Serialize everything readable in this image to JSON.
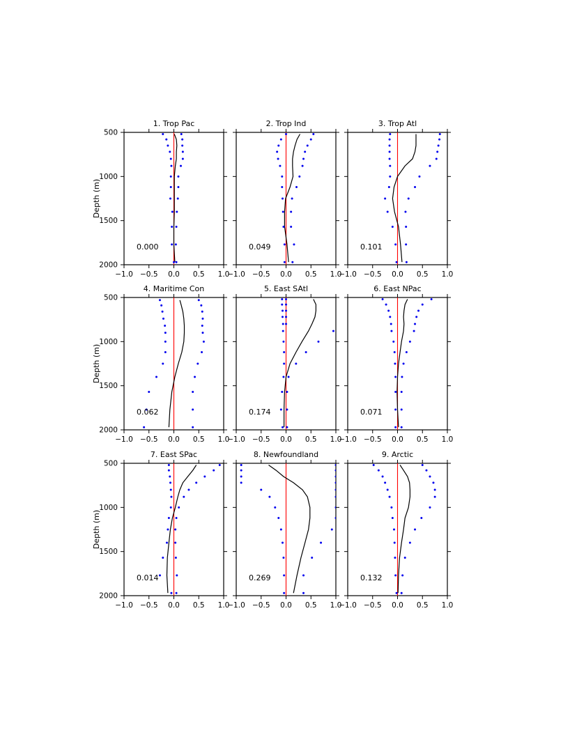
{
  "chart_data": {
    "type": "line",
    "xlim": [
      -1.0,
      1.0
    ],
    "ylim": [
      2000,
      500
    ],
    "y_inverted": true,
    "xticks": [
      "−1.0",
      "−0.5",
      "0.0",
      "0.5",
      "1.0"
    ],
    "yticks": [
      "500",
      "1000",
      "1500",
      "2000"
    ],
    "ylabel": "Depth (m)",
    "colors": {
      "profile": "#000000",
      "spread": "#0000ee",
      "zero_line": "#ff0000"
    },
    "panels": [
      {
        "title": "1. Trop Pac",
        "value_label": "0.000",
        "depths": [
          520,
          580,
          650,
          720,
          800,
          880,
          1000,
          1120,
          1250,
          1400,
          1570,
          1770,
          1970
        ],
        "profile": [
          0.01,
          0.05,
          0.06,
          0.05,
          0.05,
          0.03,
          0.01,
          0.01,
          0.01,
          0.01,
          0.0,
          0.0,
          0.02
        ],
        "lower": [
          -0.22,
          -0.15,
          -0.12,
          -0.08,
          -0.06,
          -0.05,
          -0.06,
          -0.06,
          -0.07,
          -0.03,
          -0.04,
          -0.04,
          0.0
        ],
        "upper": [
          0.15,
          0.17,
          0.17,
          0.18,
          0.18,
          0.14,
          0.09,
          0.09,
          0.08,
          0.06,
          0.05,
          0.04,
          0.05
        ],
        "grid": false
      },
      {
        "title": "2. Trop Ind",
        "value_label": "0.049",
        "depths": [
          520,
          580,
          650,
          720,
          800,
          880,
          1000,
          1120,
          1250,
          1400,
          1570,
          1770,
          1970
        ],
        "profile": [
          0.28,
          0.22,
          0.18,
          0.15,
          0.13,
          0.13,
          0.14,
          0.08,
          -0.01,
          -0.03,
          -0.03,
          0.02,
          0.05
        ],
        "lower": [
          0.0,
          -0.1,
          -0.15,
          -0.18,
          -0.16,
          -0.12,
          -0.08,
          -0.08,
          -0.07,
          -0.06,
          -0.05,
          -0.03,
          -0.03
        ],
        "upper": [
          0.55,
          0.5,
          0.43,
          0.38,
          0.35,
          0.33,
          0.27,
          0.21,
          0.12,
          0.1,
          0.1,
          0.16,
          0.13
        ],
        "grid": false
      },
      {
        "title": "3. Trop Atl",
        "value_label": "0.101",
        "depths": [
          520,
          580,
          650,
          720,
          800,
          880,
          1000,
          1120,
          1250,
          1400,
          1570,
          1770,
          1970
        ],
        "profile": [
          0.37,
          0.37,
          0.37,
          0.35,
          0.3,
          0.15,
          0.0,
          -0.07,
          -0.1,
          -0.06,
          0.02,
          0.06,
          0.09
        ],
        "lower": [
          -0.15,
          -0.16,
          -0.16,
          -0.16,
          -0.16,
          -0.15,
          -0.15,
          -0.17,
          -0.25,
          -0.2,
          -0.1,
          -0.04,
          -0.02
        ],
        "upper": [
          0.85,
          0.84,
          0.82,
          0.8,
          0.78,
          0.65,
          0.44,
          0.35,
          0.22,
          0.16,
          0.17,
          0.17,
          0.18
        ],
        "grid": false
      },
      {
        "title": "4. Maritime Con",
        "value_label": "0.062",
        "depths": [
          530,
          590,
          660,
          740,
          820,
          900,
          1000,
          1120,
          1250,
          1400,
          1570,
          1770,
          1970
        ],
        "profile": [
          0.12,
          0.15,
          0.18,
          0.2,
          0.21,
          0.21,
          0.2,
          0.16,
          0.09,
          0.02,
          -0.04,
          -0.08,
          -0.1
        ],
        "lower": [
          -0.28,
          -0.25,
          -0.23,
          -0.21,
          -0.18,
          -0.17,
          -0.17,
          -0.17,
          -0.22,
          -0.35,
          -0.5,
          -0.55,
          -0.6
        ],
        "upper": [
          0.5,
          0.55,
          0.57,
          0.58,
          0.57,
          0.58,
          0.6,
          0.56,
          0.48,
          0.42,
          0.38,
          0.38,
          0.38
        ],
        "grid": false
      },
      {
        "title": "5. East SAtl",
        "value_label": "0.174",
        "depths": [
          520,
          580,
          650,
          720,
          800,
          880,
          1000,
          1120,
          1250,
          1400,
          1570,
          1770,
          1970
        ],
        "profile": [
          0.55,
          0.6,
          0.6,
          0.58,
          0.52,
          0.45,
          0.32,
          0.2,
          0.08,
          0.0,
          -0.03,
          -0.04,
          -0.04
        ],
        "lower": [
          -0.08,
          -0.08,
          -0.07,
          -0.07,
          -0.06,
          -0.06,
          -0.05,
          -0.04,
          -0.04,
          -0.05,
          -0.08,
          -0.1,
          -0.07
        ],
        "upper": [
          0.0,
          0.0,
          0.0,
          0.0,
          0.0,
          0.95,
          0.65,
          0.4,
          0.2,
          0.05,
          0.02,
          0.02,
          0.02
        ],
        "grid": false
      },
      {
        "title": "6. East NPac",
        "value_label": "0.071",
        "depths": [
          520,
          580,
          650,
          720,
          800,
          880,
          1000,
          1120,
          1250,
          1400,
          1570,
          1770,
          1970
        ],
        "profile": [
          0.2,
          0.15,
          0.13,
          0.12,
          0.13,
          0.12,
          0.08,
          0.05,
          0.02,
          0.0,
          -0.01,
          0.0,
          0.02
        ],
        "lower": [
          -0.3,
          -0.23,
          -0.18,
          -0.15,
          -0.13,
          -0.12,
          -0.08,
          -0.06,
          -0.05,
          -0.04,
          -0.04,
          -0.04,
          -0.04
        ],
        "upper": [
          0.68,
          0.5,
          0.42,
          0.38,
          0.35,
          0.33,
          0.25,
          0.18,
          0.12,
          0.09,
          0.08,
          0.08,
          0.08
        ],
        "grid": false
      },
      {
        "title": "7. East SPac",
        "value_label": "0.014",
        "depths": [
          520,
          580,
          650,
          720,
          800,
          880,
          1000,
          1120,
          1250,
          1400,
          1570,
          1770,
          1970
        ],
        "profile": [
          0.45,
          0.38,
          0.28,
          0.18,
          0.12,
          0.08,
          0.03,
          -0.03,
          -0.07,
          -0.1,
          -0.13,
          -0.14,
          -0.12
        ],
        "lower": [
          -0.1,
          -0.1,
          -0.08,
          -0.07,
          -0.06,
          -0.05,
          -0.06,
          -0.1,
          -0.12,
          -0.14,
          -0.22,
          -0.28,
          -0.05
        ],
        "upper": [
          0.92,
          0.8,
          0.62,
          0.45,
          0.3,
          0.2,
          0.1,
          0.05,
          0.03,
          0.03,
          0.04,
          0.06,
          0.05
        ],
        "grid": false
      },
      {
        "title": "8. Newfoundland",
        "value_label": "0.269",
        "depths": [
          520,
          580,
          650,
          720,
          800,
          880,
          1000,
          1120,
          1250,
          1400,
          1570,
          1770,
          1970
        ],
        "profile": [
          -0.35,
          -0.2,
          -0.05,
          0.15,
          0.33,
          0.43,
          0.48,
          0.48,
          0.45,
          0.38,
          0.3,
          0.22,
          0.15
        ],
        "lower": [
          -0.9,
          -0.9,
          -0.9,
          -0.9,
          -0.5,
          -0.33,
          -0.22,
          -0.15,
          -0.1,
          -0.07,
          -0.05,
          -0.04,
          -0.04
        ],
        "upper": [
          1.0,
          1.0,
          1.0,
          1.0,
          1.0,
          1.0,
          1.0,
          1.0,
          0.92,
          0.7,
          0.52,
          0.35,
          0.35
        ],
        "grid": false
      },
      {
        "title": "9. Arctic",
        "value_label": "0.132",
        "depths": [
          520,
          580,
          650,
          720,
          800,
          880,
          1000,
          1120,
          1250,
          1400,
          1570,
          1770,
          1970
        ],
        "profile": [
          0.05,
          0.12,
          0.2,
          0.24,
          0.25,
          0.25,
          0.22,
          0.15,
          0.12,
          0.08,
          0.04,
          0.02,
          0.01
        ],
        "lower": [
          -0.48,
          -0.38,
          -0.3,
          -0.25,
          -0.2,
          -0.16,
          -0.12,
          -0.1,
          -0.07,
          -0.06,
          -0.05,
          -0.04,
          -0.02
        ],
        "upper": [
          0.5,
          0.58,
          0.65,
          0.72,
          0.75,
          0.75,
          0.65,
          0.48,
          0.35,
          0.25,
          0.15,
          0.1,
          0.08
        ],
        "grid": false
      }
    ]
  }
}
